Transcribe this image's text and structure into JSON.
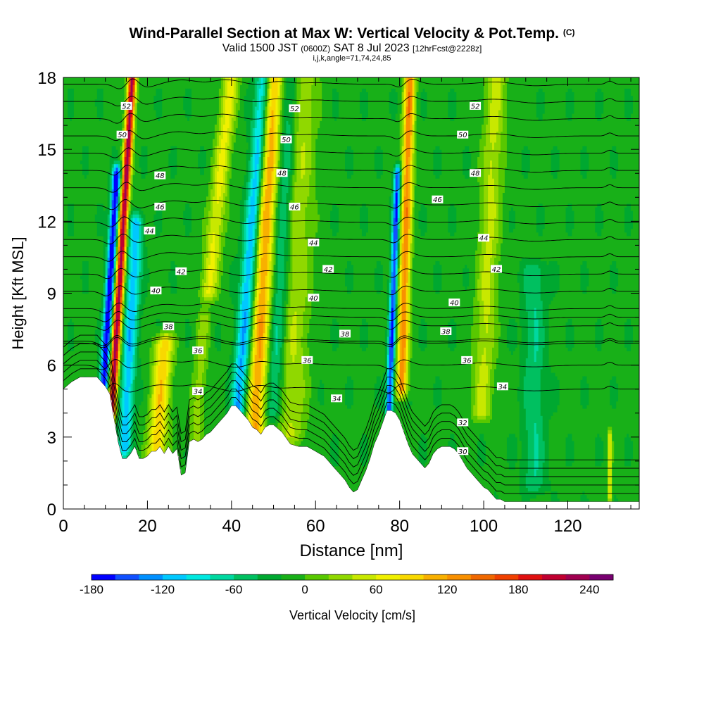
{
  "title": {
    "main": "Wind-Parallel Section at Max W: Vertical Velocity & Pot.Temp.",
    "copyright": "(C)",
    "valid_prefix": "Valid 1500 JST",
    "valid_utc": "(0600Z)",
    "valid_date": "SAT 8 Jul 2023",
    "forecast": "[12hrFcst@2228z]",
    "params": "i,j,k,angle=71,74,24,85"
  },
  "chart_data": {
    "type": "heatmap",
    "xlabel": "Distance [nm]",
    "ylabel": "Height [Kft MSL]",
    "xlim": [
      0,
      137
    ],
    "ylim": [
      0,
      18
    ],
    "x_ticks": [
      0,
      20,
      40,
      60,
      80,
      100,
      120
    ],
    "y_ticks": [
      0,
      3,
      6,
      9,
      12,
      15,
      18
    ],
    "colorbar": {
      "label": "Vertical Velocity [cm/s]",
      "range": [
        -180,
        260
      ],
      "ticks": [
        -180,
        -120,
        -60,
        0,
        60,
        120,
        180,
        240
      ],
      "colors": [
        "#0000ff",
        "#1050ff",
        "#0090ff",
        "#00c8ff",
        "#00e8e0",
        "#00d8a0",
        "#00c060",
        "#00a830",
        "#18b018",
        "#58c800",
        "#90d800",
        "#c8e800",
        "#f0f000",
        "#f8d800",
        "#f8b000",
        "#f89000",
        "#f06800",
        "#f04000",
        "#e01010",
        "#c00030",
        "#a00050",
        "#780070"
      ]
    },
    "vertical_velocity": {
      "background": -15,
      "features": [
        {
          "x": 9.2,
          "w": 1.0,
          "value": -175,
          "z": [
            4,
            14
          ],
          "slope": 0.35
        },
        {
          "x": 11.5,
          "w": 1.0,
          "value": 245,
          "z": [
            4,
            18
          ],
          "slope": 0.35
        },
        {
          "x": 14.5,
          "w": 1.6,
          "value": -100,
          "z": [
            2.5,
            12
          ],
          "slope": 0.3
        },
        {
          "x": 22,
          "w": 2.2,
          "value": 110,
          "z": [
            2,
            7
          ],
          "slope": 0.4
        },
        {
          "x": 31.5,
          "w": 1.6,
          "value": 45,
          "z": [
            3,
            8
          ],
          "slope": 0.4
        },
        {
          "x": 34.5,
          "w": 2.0,
          "value": 80,
          "z": [
            9,
            18
          ],
          "slope": 0.6
        },
        {
          "x": 41.5,
          "w": 1.8,
          "value": -110,
          "z": [
            4,
            18
          ],
          "slope": 0.45
        },
        {
          "x": 45.5,
          "w": 2.2,
          "value": 135,
          "z": [
            3,
            18
          ],
          "slope": 0.3
        },
        {
          "x": 50,
          "w": 2.0,
          "value": -60,
          "z": [
            4,
            18
          ],
          "slope": 0.3
        },
        {
          "x": 54,
          "w": 3.5,
          "value": 55,
          "z": [
            3,
            18
          ],
          "slope": 0.2
        },
        {
          "x": 77.5,
          "w": 0.8,
          "value": -150,
          "z": [
            4,
            14
          ],
          "slope": 0.2
        },
        {
          "x": 80.5,
          "w": 1.3,
          "value": 150,
          "z": [
            5,
            18
          ],
          "slope": 0.15
        },
        {
          "x": 99.5,
          "w": 2.5,
          "value": 60,
          "z": [
            4,
            18
          ],
          "slope": 0.25
        },
        {
          "x": 112,
          "w": 2.5,
          "value": -45,
          "z": [
            1,
            10
          ],
          "slope": 0.0
        },
        {
          "x": 130,
          "w": 0.5,
          "value": 80,
          "z": [
            0.5,
            3
          ],
          "slope": 0.0
        }
      ]
    },
    "potential_temperature": {
      "contour_interval": 1,
      "labels": [
        {
          "value": 52,
          "x": 15,
          "z": 16.8
        },
        {
          "value": 52,
          "x": 55,
          "z": 16.7
        },
        {
          "value": 52,
          "x": 98,
          "z": 16.8
        },
        {
          "value": 50,
          "x": 14,
          "z": 15.6
        },
        {
          "value": 50,
          "x": 53,
          "z": 15.4
        },
        {
          "value": 50,
          "x": 95,
          "z": 15.6
        },
        {
          "value": 48,
          "x": 23,
          "z": 13.9
        },
        {
          "value": 48,
          "x": 52,
          "z": 14.0
        },
        {
          "value": 48,
          "x": 98,
          "z": 14.0
        },
        {
          "value": 46,
          "x": 23,
          "z": 12.6
        },
        {
          "value": 46,
          "x": 55,
          "z": 12.6
        },
        {
          "value": 46,
          "x": 89,
          "z": 12.9
        },
        {
          "value": 44,
          "x": 20.5,
          "z": 11.6
        },
        {
          "value": 44,
          "x": 59.5,
          "z": 11.1
        },
        {
          "value": 44,
          "x": 100,
          "z": 11.3
        },
        {
          "value": 42,
          "x": 28,
          "z": 9.9
        },
        {
          "value": 42,
          "x": 63,
          "z": 10.0
        },
        {
          "value": 42,
          "x": 103,
          "z": 10.0
        },
        {
          "value": 40,
          "x": 22,
          "z": 9.1
        },
        {
          "value": 40,
          "x": 59.5,
          "z": 8.8
        },
        {
          "value": 40,
          "x": 93,
          "z": 8.6
        },
        {
          "value": 38,
          "x": 25,
          "z": 7.6
        },
        {
          "value": 38,
          "x": 67,
          "z": 7.3
        },
        {
          "value": 38,
          "x": 91,
          "z": 7.4
        },
        {
          "value": 36,
          "x": 32,
          "z": 6.6
        },
        {
          "value": 36,
          "x": 58,
          "z": 6.2
        },
        {
          "value": 36,
          "x": 96,
          "z": 6.2
        },
        {
          "value": 34,
          "x": 32,
          "z": 4.9
        },
        {
          "value": 34,
          "x": 65,
          "z": 4.6
        },
        {
          "value": 34,
          "x": 104.5,
          "z": 5.1
        },
        {
          "value": 32,
          "x": 95,
          "z": 3.6
        },
        {
          "value": 30,
          "x": 95,
          "z": 2.4
        }
      ]
    },
    "terrain": {
      "x": [
        0,
        2,
        4,
        6,
        8,
        9,
        10,
        11,
        12,
        13,
        14,
        15,
        16,
        17,
        18,
        19,
        20,
        21,
        22,
        23,
        24,
        25,
        26,
        27,
        28,
        29,
        30,
        31,
        32,
        33,
        34,
        35,
        36,
        37,
        38,
        39,
        40,
        41,
        42,
        43,
        44,
        45,
        46,
        47,
        48,
        49,
        50,
        52,
        54,
        56,
        58,
        60,
        61,
        62,
        63,
        64,
        65,
        66,
        67,
        68,
        69,
        70,
        71,
        72,
        73,
        74,
        75,
        76,
        77,
        78,
        79,
        80,
        81,
        82,
        83,
        84,
        85,
        86,
        87,
        88,
        89,
        90,
        91,
        92,
        93,
        94,
        95,
        96,
        97,
        98,
        99,
        100,
        101,
        102,
        103,
        104,
        105,
        106,
        108,
        110,
        112,
        114,
        116,
        118,
        120,
        122,
        124,
        126,
        128,
        129,
        130,
        131,
        132,
        134,
        136,
        137
      ],
      "z": [
        5.0,
        5.3,
        5.5,
        5.5,
        5.5,
        5.3,
        5.1,
        4.8,
        3.8,
        2.8,
        2.1,
        2.1,
        2.3,
        2.6,
        2.1,
        2.1,
        2.2,
        2.4,
        2.4,
        2.6,
        2.3,
        2.6,
        2.3,
        2.5,
        1.4,
        1.5,
        2.8,
        2.9,
        2.8,
        2.9,
        3.1,
        3.2,
        3.4,
        3.6,
        3.8,
        4.0,
        4.3,
        4.3,
        4.1,
        3.9,
        3.7,
        3.4,
        3.3,
        3.1,
        3.4,
        3.5,
        3.5,
        3.2,
        2.7,
        2.6,
        2.6,
        2.4,
        2.3,
        2.2,
        2.0,
        1.8,
        1.6,
        1.4,
        1.2,
        0.9,
        0.7,
        0.8,
        1.2,
        1.6,
        2.1,
        2.7,
        3.1,
        3.6,
        4.1,
        4.1,
        4.0,
        3.7,
        3.2,
        2.7,
        2.3,
        2.1,
        1.9,
        1.7,
        1.9,
        2.3,
        2.5,
        2.6,
        2.6,
        2.6,
        2.5,
        2.3,
        2.0,
        1.7,
        1.5,
        1.3,
        1.1,
        0.9,
        0.8,
        0.6,
        0.4,
        0.4,
        0.3,
        0.3,
        0.3,
        0.3,
        0.3,
        0.3,
        0.3,
        0.3,
        0.3,
        0.3,
        0.3,
        0.3,
        0.3,
        0.3,
        0.3,
        0.3,
        0.3,
        0.3,
        0.3,
        0.3
      ]
    }
  }
}
